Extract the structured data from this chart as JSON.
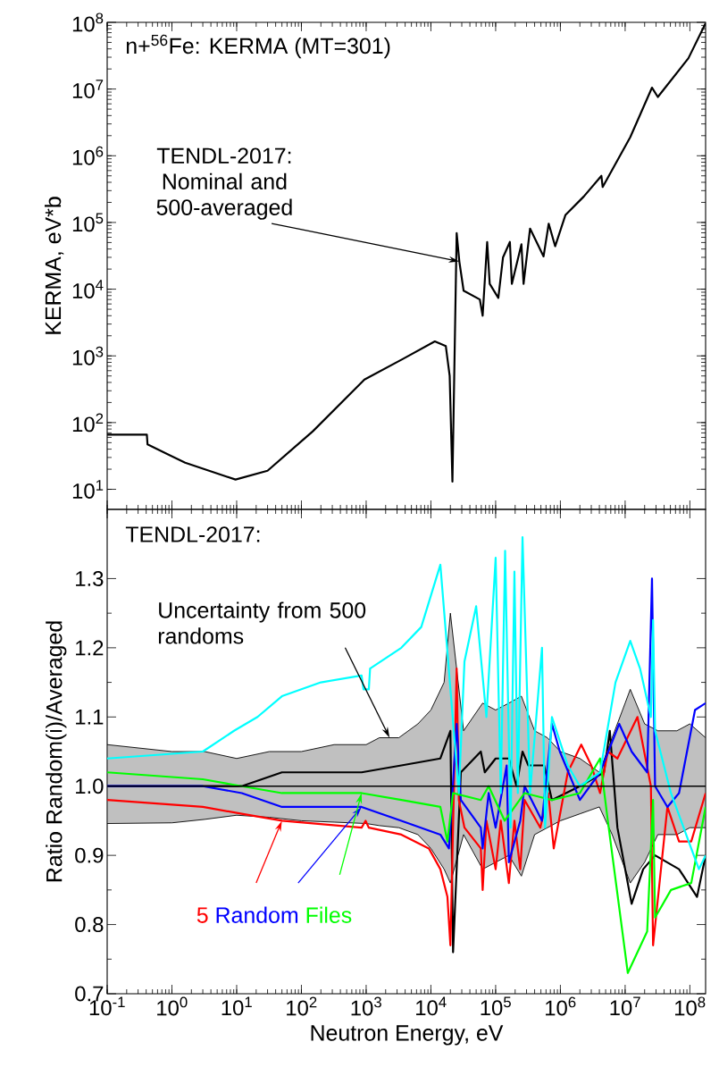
{
  "chart_data": [
    {
      "type": "line",
      "title": "n+$^{56}$Fe: KERMA (MT=301)",
      "ylabel": "KERMA,  eV*b",
      "log": "xy",
      "tick_labels": "y",
      "xlim": [
        0.1,
        175000000
      ],
      "ylim": [
        5,
        100000000
      ],
      "xticks": [
        {
          "value": 0.1,
          "label": null
        },
        {
          "value": 1,
          "label": null
        },
        {
          "value": 10,
          "label": null
        },
        {
          "value": 100,
          "label": null
        },
        {
          "value": 1000,
          "label": null
        },
        {
          "value": 10000,
          "label": null
        },
        {
          "value": 100000,
          "label": null
        },
        {
          "value": 1000000,
          "label": null
        },
        {
          "value": 10000000,
          "label": null
        },
        {
          "value": 100000000,
          "label": null
        }
      ],
      "yticks": [
        {
          "value": 10,
          "label": "10$^{1}$"
        },
        {
          "value": 100,
          "label": "10$^{2}$"
        },
        {
          "value": 1000,
          "label": "10$^{3}$"
        },
        {
          "value": 10000,
          "label": "10$^{4}$"
        },
        {
          "value": 100000,
          "label": "10$^{5}$"
        },
        {
          "value": 1000000,
          "label": "10$^{6}$"
        },
        {
          "value": 10000000,
          "label": "10$^{7}$"
        },
        {
          "value": 100000000,
          "label": "10$^{8}$"
        }
      ],
      "annotations": [
        {
          "text": "TENDL-2017: Nominal and 500-averaged",
          "x": 27500,
          "y": 26000
        }
      ],
      "series": [
        {
          "color": "#000000",
          "x": [
            0.1,
            0.41,
            0.42,
            1.6,
            9.6,
            30,
            150,
            940,
            3700,
            11500,
            17000,
            19500,
            21500,
            25000,
            27500,
            32000,
            57000,
            63000,
            74000,
            81000,
            110000,
            130000,
            166000,
            178000,
            250000,
            270000,
            340000,
            550000,
            660000,
            830000,
            1200000,
            2300000,
            4300000,
            4500000,
            12000000,
            26000000,
            32000000,
            95000000,
            175000000
          ],
          "values": [
            66,
            66,
            47,
            25,
            14,
            19,
            74,
            440,
            900,
            1650,
            1400,
            500,
            13,
            69000,
            26000,
            9500,
            7000,
            4000,
            51000,
            12000,
            7400,
            30000,
            51000,
            12000,
            47000,
            12000,
            81000,
            31000,
            96000,
            44000,
            130000,
            245000,
            500000,
            340000,
            1900000,
            10500000,
            7600000,
            29000000,
            97000000
          ]
        }
      ]
    },
    {
      "type": "line",
      "xlabel": "Neutron Energy,   eV",
      "ylabel": "Ratio Random(i)/Averaged",
      "log": "x",
      "xlim": [
        0.1,
        175000000
      ],
      "ylim": [
        0.7,
        1.4
      ],
      "xticks": [
        {
          "value": 0.1,
          "label": "10$^{-1}$"
        },
        {
          "value": 1,
          "label": "10$^{0}$"
        },
        {
          "value": 10,
          "label": "10$^{1}$"
        },
        {
          "value": 100,
          "label": "10$^{2}$"
        },
        {
          "value": 1000,
          "label": "10$^{3}$"
        },
        {
          "value": 10000,
          "label": "10$^{4}$"
        },
        {
          "value": 100000,
          "label": "10$^{5}$"
        },
        {
          "value": 1000000,
          "label": "10$^{6}$"
        },
        {
          "value": 10000000,
          "label": "10$^{7}$"
        },
        {
          "value": 100000000,
          "label": "10$^{8}$"
        }
      ],
      "yticks": [
        {
          "value": 0.7,
          "label": "0.7"
        },
        {
          "value": 0.8,
          "label": "0.8"
        },
        {
          "value": 0.9,
          "label": "0.9"
        },
        {
          "value": 1.0,
          "label": "1.0"
        },
        {
          "value": 1.1,
          "label": "1.1"
        },
        {
          "value": 1.2,
          "label": "1.2"
        },
        {
          "value": 1.3,
          "label": "1.3"
        }
      ],
      "annotations": [
        "TENDL-2017:",
        {
          "text": "Uncertainty from 500 randoms",
          "x": 2300,
          "y": 1.07
        }
      ],
      "series": [
        {
          "color": "#000000",
          "x": [
            0.1,
            1,
            3.2,
            10,
            32,
            100,
            320,
            1000,
            1600,
            3200,
            6300,
            10000,
            16000,
            20000,
            32000,
            63000,
            100000,
            160000,
            250000,
            400000,
            630000,
            1000000,
            2000000,
            4000000,
            6300000,
            10000000,
            12000000,
            20000000,
            32000000,
            63000000,
            100000000,
            175000000
          ],
          "values": [
            1,
            1,
            1,
            1,
            1,
            1,
            1,
            1,
            1,
            1,
            1,
            1,
            1,
            1,
            1,
            1,
            1,
            1,
            1,
            1,
            1,
            1,
            1,
            1,
            1,
            1,
            1,
            1,
            1,
            1,
            1,
            1
          ],
          "lower": [
            0.946,
            0.947,
            0.952,
            0.958,
            0.955,
            0.95,
            0.948,
            0.946,
            0.943,
            0.94,
            0.93,
            0.91,
            0.88,
            0.86,
            0.93,
            0.88,
            0.89,
            0.9,
            0.87,
            0.93,
            0.94,
            0.95,
            0.96,
            0.97,
            0.93,
            0.88,
            0.86,
            0.89,
            0.93,
            0.93,
            0.94,
            0.94
          ],
          "upper": [
            1.06,
            1.05,
            1.05,
            1.04,
            1.05,
            1.05,
            1.06,
            1.06,
            1.07,
            1.07,
            1.09,
            1.11,
            1.15,
            1.25,
            1.08,
            1.12,
            1.11,
            1.12,
            1.13,
            1.08,
            1.07,
            1.05,
            1.04,
            1.02,
            1.07,
            1.12,
            1.14,
            1.09,
            1.08,
            1.08,
            1.09,
            1.07
          ]
        },
        {
          "color": "#000000",
          "x": [
            0.1,
            12,
            50,
            850,
            3500,
            14000,
            20000,
            22000,
            29000,
            59000,
            68000,
            100000,
            160000,
            210000,
            260000,
            320000,
            560000,
            740000,
            2000000,
            4700000,
            5800000,
            7600000,
            12600000,
            19000000,
            26000000,
            29000000,
            68000000,
            129000000,
            175000000
          ],
          "values": [
            1.0,
            1.0,
            1.02,
            1.02,
            1.03,
            1.04,
            1.08,
            0.76,
            1.02,
            1.05,
            1.02,
            1.04,
            1.04,
            1.0,
            1.05,
            1.03,
            1.03,
            0.98,
            1.0,
            1.02,
            1.08,
            0.94,
            0.83,
            0.88,
            null,
            0.9,
            0.88,
            0.84,
            0.9
          ]
        },
        {
          "name": "5",
          "color": "#ff0000",
          "x": [
            0.1,
            3.0,
            12,
            50,
            850,
            980,
            1100,
            3500,
            9300,
            14000,
            18000,
            20000,
            25000,
            27000,
            33000,
            59000,
            63000,
            72000,
            100000,
            120000,
            160000,
            195000,
            240000,
            280000,
            490000,
            650000,
            790000,
            1300000,
            2100000,
            3000000,
            4100000,
            5400000,
            7600000,
            15500000,
            25000000,
            27000000,
            45000000,
            68000000,
            105000000,
            175000000
          ],
          "values": [
            0.98,
            0.97,
            0.96,
            0.95,
            0.94,
            0.95,
            0.94,
            0.93,
            0.91,
            0.88,
            0.84,
            0.77,
            1.17,
            0.98,
            0.94,
            0.91,
            0.85,
            0.95,
            0.88,
            0.95,
            0.86,
            0.95,
            0.88,
            0.98,
            0.94,
            0.99,
            0.91,
            1.02,
            1.06,
            1.03,
            0.99,
            1.05,
            1.04,
            1.1,
            1.0,
            0.77,
            0.97,
            0.92,
            0.92,
            0.99
          ]
        },
        {
          "name": "Random",
          "color": "#0000ff",
          "x": [
            0.1,
            3.0,
            12,
            50,
            850,
            3500,
            14000,
            19000,
            22000,
            25000,
            29000,
            59000,
            63000,
            78000,
            100000,
            148000,
            160000,
            240000,
            280000,
            520000,
            740000,
            980000,
            2000000,
            4100000,
            8100000,
            12600000,
            21900000,
            26000000,
            29000000,
            45000000,
            68000000,
            120000000,
            175000000
          ],
          "values": [
            1.0,
            1.0,
            0.99,
            0.97,
            0.97,
            0.95,
            0.93,
            0.91,
            null,
            1.09,
            0.98,
            0.94,
            0.91,
            0.99,
            0.94,
            1.03,
            0.89,
            0.95,
            1.0,
            0.95,
            1.09,
            1.05,
            0.98,
            1.02,
            1.09,
            1.05,
            1.02,
            1.3,
            1.0,
            0.97,
            0.99,
            1.11,
            1.12
          ]
        },
        {
          "name": "Files",
          "color": "#00ff00",
          "x": [
            0.1,
            3.0,
            12,
            50,
            850,
            3500,
            14000,
            18000,
            22000,
            59000,
            78000,
            138000,
            280000,
            740000,
            2000000,
            4100000,
            5400000,
            11000000,
            21900000,
            27000000,
            29000000,
            51000000,
            105000000,
            175000000
          ],
          "values": [
            1.02,
            1.01,
            1.0,
            0.99,
            0.99,
            0.98,
            0.97,
            0.92,
            0.99,
            0.98,
            1.0,
            0.95,
            0.99,
            0.98,
            0.99,
            1.04,
            0.95,
            0.73,
            0.79,
            0.98,
            0.81,
            0.85,
            0.86,
            0.97
          ]
        },
        {
          "color": "#00ffff",
          "x": [
            0.1,
            3.0,
            9.1,
            21,
            50,
            200,
            850,
            910,
            1100,
            1150,
            3500,
            7100,
            14000,
            17000,
            22000,
            27000,
            33000,
            50000,
            63000,
            72000,
            100000,
            120000,
            140000,
            170000,
            195000,
            220000,
            260000,
            340000,
            520000,
            580000,
            740000,
            1300000,
            2000000,
            4100000,
            7100000,
            12000000,
            17000000,
            25000000,
            27000000,
            29000000,
            51000000,
            105000000,
            138000000,
            175000000
          ],
          "values": [
            1.04,
            1.05,
            1.08,
            1.1,
            1.13,
            1.15,
            1.16,
            1.14,
            1.14,
            1.17,
            1.2,
            1.23,
            1.32,
            null,
            null,
            0.99,
            1.18,
            1.26,
            null,
            1.1,
            1.33,
            0.99,
            1.34,
            0.94,
            1.31,
            0.99,
            1.36,
            0.99,
            1.2,
            0.94,
            1.1,
            1.03,
            1.0,
            1.02,
            1.15,
            1.21,
            1.17,
            1.1,
            1.24,
            1.08,
            0.99,
            0.91,
            0.88,
            0.9
          ]
        }
      ]
    }
  ]
}
